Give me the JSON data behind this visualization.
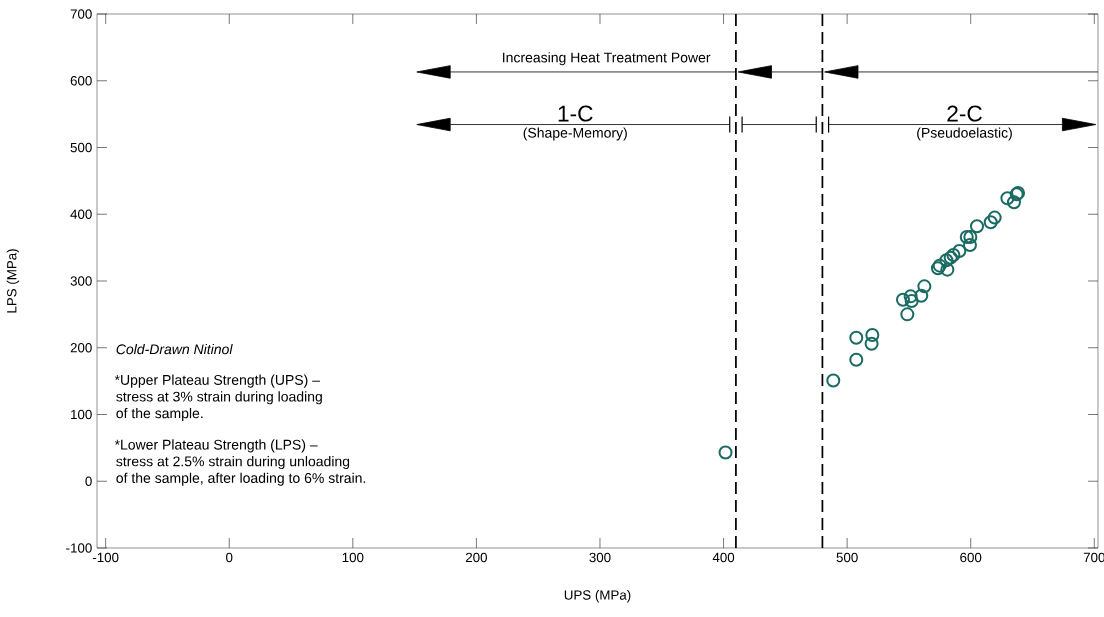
{
  "chart_data": {
    "type": "scatter",
    "xlabel": "UPS (MPa)",
    "ylabel": "LPS (MPa)",
    "xlim": [
      -107,
      703
    ],
    "ylim": [
      -100,
      700
    ],
    "xticks": [
      -100,
      0,
      100,
      200,
      300,
      400,
      500,
      600,
      700
    ],
    "yticks": [
      -100,
      0,
      100,
      200,
      300,
      400,
      500,
      600,
      700
    ],
    "grid": false,
    "marker": "circle",
    "series": [
      {
        "color": "#1a6b63",
        "x": [
          401.6,
          488.8,
          507.4,
          507.4,
          520.4,
          519.8,
          548.7,
          545.2,
          551.4,
          552.2,
          560,
          562.5,
          573.5,
          574.9,
          581.1,
          580.3,
          583.8,
          586,
          590.8,
          596.8,
          599.7,
          599.4,
          605.1,
          616.2,
          619.4,
          629.7,
          635,
          637.2,
          638.3
        ],
        "values": [
          43,
          151,
          182,
          215,
          219,
          206,
          250,
          272,
          277,
          270,
          278,
          292,
          319,
          323,
          317,
          331,
          335,
          339,
          345,
          366,
          366,
          354,
          382,
          388,
          395,
          424,
          418,
          430,
          432
        ]
      }
    ],
    "ref_lines": [
      {
        "axis": "x",
        "value": 410,
        "line_style": "dashed",
        "color": "#000000"
      },
      {
        "axis": "x",
        "value": 480,
        "line_style": "dashed",
        "color": "#000000"
      }
    ],
    "annotations": [
      "Increasing Heat Treatment Power",
      "1-C",
      "(Shape-Memory)",
      "2-C",
      "(Pseudoelastic)",
      "Cold-Drawn Nitinol",
      "*Upper Plateau Strength (UPS) –",
      "stress at 3% strain during loading",
      "of the sample.",
      "*Lower Plateau Strength (LPS) –",
      "stress at 2.5% strain during unloading",
      "of the sample, after loading to 6% strain."
    ]
  }
}
